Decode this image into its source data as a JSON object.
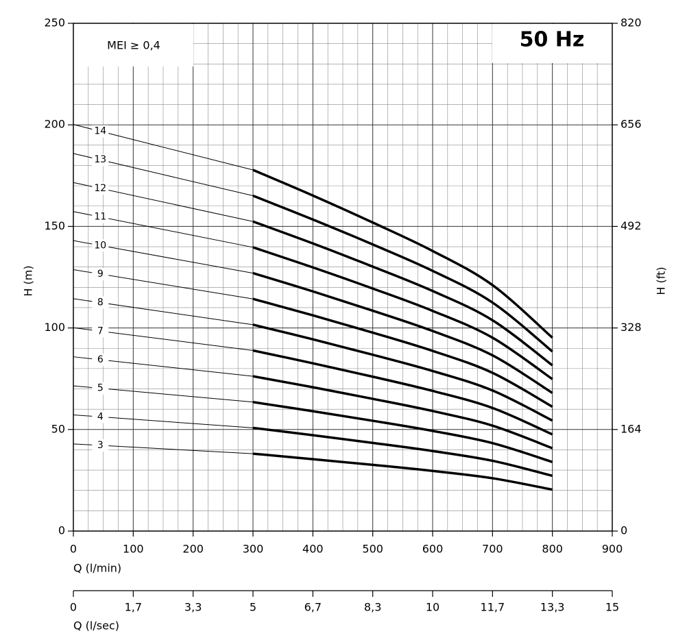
{
  "chart_data": {
    "type": "line",
    "annotations": [
      "MEI ≥ 0,4",
      "50 Hz"
    ],
    "x_label": "Q (l/min)",
    "y_label": "H (m)",
    "y2_label": "H (ft)",
    "x2_label": "Q (l/sec)",
    "x": [
      0,
      300,
      400,
      500,
      600,
      700,
      800
    ],
    "xlim": [
      0,
      900
    ],
    "xticks": [
      0,
      100,
      200,
      300,
      400,
      500,
      600,
      700,
      800,
      900
    ],
    "ylim": [
      0,
      250
    ],
    "yticks": [
      0,
      50,
      100,
      150,
      200,
      250
    ],
    "y2lim": [
      0,
      820
    ],
    "y2ticks": [
      0,
      164,
      328,
      492,
      656,
      820
    ],
    "x2lim": [
      0,
      15
    ],
    "x2ticks": [
      0,
      {
        "value": 1.667,
        "label": "1,7"
      },
      {
        "value": 3.333,
        "label": "3,3"
      },
      5,
      {
        "value": 6.667,
        "label": "6,7"
      },
      {
        "value": 8.333,
        "label": "8,3"
      },
      10,
      {
        "value": 11.667,
        "label": "11,7"
      },
      {
        "value": 13.333,
        "label": "13,3"
      },
      15
    ],
    "grid": true,
    "color": "#000000",
    "series": [
      {
        "name": "3",
        "values": [
          42.9,
          38.1,
          35.4,
          32.6,
          29.6,
          26.0,
          20.4
        ]
      },
      {
        "name": "4",
        "values": [
          57.2,
          50.8,
          47.2,
          43.4,
          39.4,
          34.6,
          27.2
        ]
      },
      {
        "name": "5",
        "values": [
          71.5,
          63.5,
          59.0,
          54.3,
          49.3,
          43.3,
          34.0
        ]
      },
      {
        "name": "6",
        "values": [
          85.8,
          76.2,
          70.8,
          65.1,
          59.1,
          51.9,
          40.8
        ]
      },
      {
        "name": "7",
        "values": [
          100.1,
          88.9,
          82.6,
          76.0,
          69.0,
          60.6,
          47.6
        ]
      },
      {
        "name": "8",
        "values": [
          114.4,
          101.6,
          94.4,
          86.8,
          78.8,
          69.2,
          54.4
        ]
      },
      {
        "name": "9",
        "values": [
          128.7,
          114.3,
          106.2,
          97.7,
          88.7,
          77.9,
          61.2
        ]
      },
      {
        "name": "10",
        "values": [
          143.0,
          127.0,
          118.0,
          108.5,
          98.5,
          86.5,
          68.0
        ]
      },
      {
        "name": "11",
        "values": [
          157.3,
          139.7,
          129.8,
          119.4,
          108.4,
          95.2,
          74.8
        ]
      },
      {
        "name": "12",
        "values": [
          171.6,
          152.4,
          141.6,
          130.2,
          118.2,
          103.8,
          81.6
        ]
      },
      {
        "name": "13",
        "values": [
          185.9,
          165.1,
          153.4,
          141.1,
          128.1,
          112.5,
          88.4
        ]
      },
      {
        "name": "14",
        "values": [
          200.2,
          177.8,
          165.2,
          151.9,
          137.9,
          121.1,
          95.2
        ]
      }
    ]
  }
}
